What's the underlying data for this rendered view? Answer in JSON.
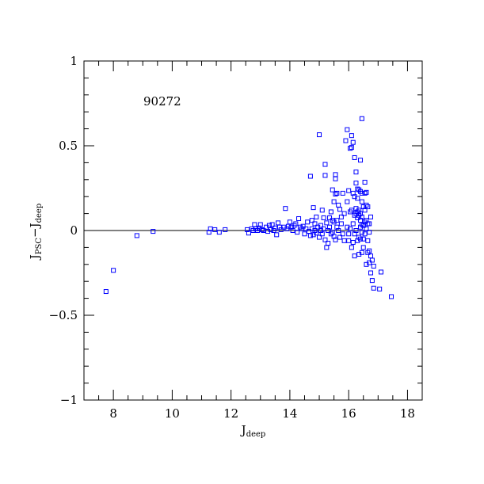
{
  "chart_data": {
    "type": "scatter",
    "title": "",
    "annotation": "90272",
    "xlabel": {
      "main": "J",
      "sub": "deep"
    },
    "ylabel": {
      "main1": "J",
      "sub1": "PSC",
      "minus": "−",
      "main2": "J",
      "sub2": "deep"
    },
    "xlim": [
      7,
      18.5
    ],
    "ylim": [
      -1,
      1
    ],
    "x_ticks": [
      8,
      10,
      12,
      14,
      16,
      18
    ],
    "x_tick_labels": [
      "8",
      "10",
      "12",
      "14",
      "16",
      "18"
    ],
    "y_ticks": [
      -1,
      -0.5,
      0,
      0.5,
      1
    ],
    "y_tick_labels": [
      "−1",
      "−0.5",
      "0",
      "0.5",
      "1"
    ],
    "x_minor_step": 0.5,
    "y_minor_step": 0.1,
    "reference_line_y": 0,
    "grid": false,
    "marker": "open-square",
    "marker_color": "#0000ff",
    "points": [
      [
        7.75,
        -0.36
      ],
      [
        8.0,
        -0.235
      ],
      [
        8.8,
        -0.03
      ],
      [
        9.35,
        -0.005
      ],
      [
        11.25,
        -0.01
      ],
      [
        11.3,
        0.01
      ],
      [
        11.45,
        0.005
      ],
      [
        11.6,
        -0.01
      ],
      [
        11.8,
        0.005
      ],
      [
        12.55,
        0.005
      ],
      [
        12.6,
        -0.015
      ],
      [
        12.7,
        0.01
      ],
      [
        12.75,
        0.0
      ],
      [
        12.8,
        0.035
      ],
      [
        12.85,
        0.01
      ],
      [
        12.9,
        0.0
      ],
      [
        12.95,
        0.015
      ],
      [
        13.0,
        0.035
      ],
      [
        13.05,
        0.005
      ],
      [
        13.1,
        0.0
      ],
      [
        13.2,
        0.02
      ],
      [
        13.25,
        -0.005
      ],
      [
        13.3,
        0.03
      ],
      [
        13.35,
        0.005
      ],
      [
        13.4,
        0.035
      ],
      [
        13.45,
        0.0
      ],
      [
        13.5,
        0.015
      ],
      [
        13.55,
        -0.025
      ],
      [
        13.6,
        0.045
      ],
      [
        13.65,
        0.02
      ],
      [
        13.7,
        0.005
      ],
      [
        13.8,
        0.02
      ],
      [
        13.85,
        0.13
      ],
      [
        13.9,
        0.01
      ],
      [
        13.95,
        0.025
      ],
      [
        14.0,
        0.05
      ],
      [
        14.05,
        0.02
      ],
      [
        14.1,
        0.0
      ],
      [
        14.15,
        0.03
      ],
      [
        14.2,
        0.04
      ],
      [
        14.25,
        -0.01
      ],
      [
        14.3,
        0.07
      ],
      [
        14.35,
        0.02
      ],
      [
        14.4,
        0.01
      ],
      [
        14.45,
        0.025
      ],
      [
        14.5,
        -0.02
      ],
      [
        14.55,
        0.01
      ],
      [
        14.6,
        0.05
      ],
      [
        14.65,
        -0.005
      ],
      [
        14.7,
        0.32
      ],
      [
        14.7,
        -0.03
      ],
      [
        14.75,
        0.06
      ],
      [
        14.75,
        0.01
      ],
      [
        14.8,
        0.135
      ],
      [
        14.8,
        -0.025
      ],
      [
        14.85,
        0.04
      ],
      [
        14.85,
        0.0
      ],
      [
        14.9,
        0.08
      ],
      [
        14.9,
        -0.015
      ],
      [
        14.95,
        0.02
      ],
      [
        15.0,
        0.565
      ],
      [
        15.0,
        -0.04
      ],
      [
        15.05,
        0.0
      ],
      [
        15.05,
        0.03
      ],
      [
        15.1,
        0.12
      ],
      [
        15.1,
        -0.02
      ],
      [
        15.15,
        0.075
      ],
      [
        15.15,
        0.01
      ],
      [
        15.2,
        0.39
      ],
      [
        15.2,
        0.325
      ],
      [
        15.2,
        -0.055
      ],
      [
        15.25,
        -0.1
      ],
      [
        15.25,
        0.045
      ],
      [
        15.3,
        0.0
      ],
      [
        15.3,
        -0.075
      ],
      [
        15.35,
        0.075
      ],
      [
        15.35,
        0.02
      ],
      [
        15.4,
        0.11
      ],
      [
        15.4,
        -0.02
      ],
      [
        15.45,
        0.24
      ],
      [
        15.45,
        0.06
      ],
      [
        15.45,
        -0.01
      ],
      [
        15.5,
        0.17
      ],
      [
        15.5,
        0.05
      ],
      [
        15.5,
        -0.035
      ],
      [
        15.55,
        0.33
      ],
      [
        15.55,
        0.305
      ],
      [
        15.55,
        0.215
      ],
      [
        15.55,
        -0.055
      ],
      [
        15.6,
        0.22
      ],
      [
        15.6,
        0.06
      ],
      [
        15.6,
        0.02
      ],
      [
        15.65,
        0.15
      ],
      [
        15.65,
        0.0
      ],
      [
        15.7,
        0.125
      ],
      [
        15.7,
        -0.04
      ],
      [
        15.75,
        0.08
      ],
      [
        15.75,
        0.04
      ],
      [
        15.8,
        0.22
      ],
      [
        15.8,
        -0.02
      ],
      [
        15.85,
        0.1
      ],
      [
        15.85,
        -0.06
      ],
      [
        15.9,
        0.53
      ],
      [
        15.95,
        0.595
      ],
      [
        15.95,
        0.17
      ],
      [
        15.95,
        0.02
      ],
      [
        16.0,
        0.235
      ],
      [
        16.0,
        -0.02
      ],
      [
        16.0,
        -0.06
      ],
      [
        16.05,
        0.485
      ],
      [
        16.05,
        0.11
      ],
      [
        16.05,
        0.01
      ],
      [
        16.1,
        0.56
      ],
      [
        16.1,
        0.49
      ],
      [
        16.1,
        0.12
      ],
      [
        16.1,
        -0.1
      ],
      [
        16.15,
        0.52
      ],
      [
        16.15,
        0.22
      ],
      [
        16.15,
        0.04
      ],
      [
        16.15,
        -0.07
      ],
      [
        16.2,
        0.43
      ],
      [
        16.2,
        0.2
      ],
      [
        16.2,
        0.09
      ],
      [
        16.2,
        -0.02
      ],
      [
        16.2,
        -0.15
      ],
      [
        16.25,
        0.345
      ],
      [
        16.25,
        0.28
      ],
      [
        16.25,
        0.13
      ],
      [
        16.25,
        0.1
      ],
      [
        16.25,
        0.0
      ],
      [
        16.3,
        0.245
      ],
      [
        16.3,
        0.19
      ],
      [
        16.3,
        0.11
      ],
      [
        16.3,
        0.075
      ],
      [
        16.3,
        -0.06
      ],
      [
        16.35,
        0.24
      ],
      [
        16.35,
        0.12
      ],
      [
        16.35,
        0.09
      ],
      [
        16.35,
        -0.04
      ],
      [
        16.35,
        -0.14
      ],
      [
        16.4,
        0.415
      ],
      [
        16.4,
        0.23
      ],
      [
        16.4,
        0.1
      ],
      [
        16.4,
        0.06
      ],
      [
        16.4,
        0.02
      ],
      [
        16.4,
        -0.05
      ],
      [
        16.45,
        0.66
      ],
      [
        16.45,
        0.22
      ],
      [
        16.45,
        0.17
      ],
      [
        16.45,
        0.08
      ],
      [
        16.45,
        0.035
      ],
      [
        16.45,
        -0.01
      ],
      [
        16.45,
        -0.13
      ],
      [
        16.5,
        0.14
      ],
      [
        16.5,
        0.03
      ],
      [
        16.5,
        -0.05
      ],
      [
        16.5,
        -0.1
      ],
      [
        16.55,
        0.285
      ],
      [
        16.55,
        0.22
      ],
      [
        16.55,
        0.12
      ],
      [
        16.55,
        0.05
      ],
      [
        16.55,
        -0.02
      ],
      [
        16.6,
        0.225
      ],
      [
        16.6,
        0.15
      ],
      [
        16.6,
        0.06
      ],
      [
        16.6,
        0.01
      ],
      [
        16.6,
        -0.2
      ],
      [
        16.65,
        0.14
      ],
      [
        16.65,
        0.04
      ],
      [
        16.65,
        -0.06
      ],
      [
        16.65,
        -0.13
      ],
      [
        16.7,
        0.04
      ],
      [
        16.7,
        -0.01
      ],
      [
        16.7,
        -0.12
      ],
      [
        16.7,
        -0.19
      ],
      [
        16.75,
        0.08
      ],
      [
        16.75,
        -0.15
      ],
      [
        16.75,
        -0.25
      ],
      [
        16.8,
        -0.175
      ],
      [
        16.8,
        -0.295
      ],
      [
        16.85,
        -0.21
      ],
      [
        16.85,
        -0.34
      ],
      [
        17.05,
        -0.345
      ],
      [
        17.1,
        -0.245
      ],
      [
        17.45,
        -0.39
      ]
    ]
  }
}
